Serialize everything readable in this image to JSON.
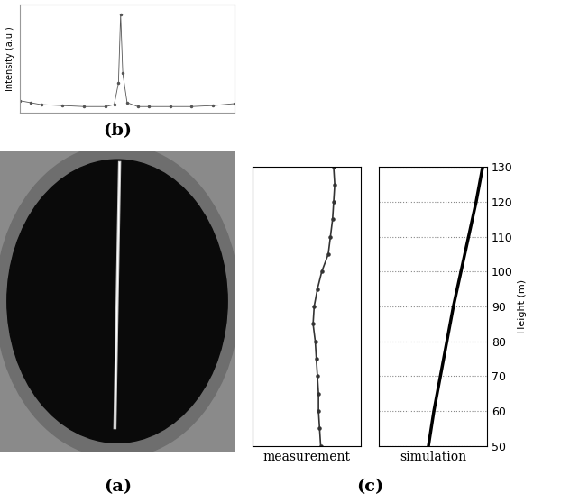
{
  "chart_data": [
    {
      "type": "image",
      "caption": "(a)"
    },
    {
      "type": "line",
      "caption": "(b)",
      "y_label": "Intensity (a.u.)",
      "x": [
        0,
        5,
        10,
        20,
        30,
        40,
        44,
        46,
        47,
        48,
        50,
        55,
        60,
        70,
        80,
        90,
        100
      ],
      "values": [
        12,
        10,
        8,
        7,
        6,
        6,
        8,
        30,
        100,
        40,
        10,
        6,
        6,
        6,
        6,
        7,
        9
      ],
      "xlim": [
        0,
        100
      ],
      "ylim": [
        0,
        110
      ],
      "color": "#555555",
      "marker": "dot",
      "tick_labels": false
    },
    {
      "type": "scatter",
      "caption": "(c)",
      "x_label": "measurement",
      "x": [
        63,
        62,
        61,
        61,
        60,
        59,
        58,
        56,
        57,
        60,
        64,
        70,
        72,
        74,
        75,
        76,
        75
      ],
      "y": [
        50,
        55,
        60,
        65,
        70,
        75,
        80,
        85,
        90,
        95,
        100,
        105,
        110,
        115,
        120,
        125,
        130
      ],
      "xlim": [
        0,
        100
      ],
      "ylim": [
        50,
        130
      ],
      "color": "#333333",
      "marker": "dot",
      "tick_labels": false
    },
    {
      "type": "line",
      "x_label": "simulation",
      "y_label": "Height (m)",
      "x": [
        46,
        51,
        57,
        63,
        69,
        76,
        83,
        90,
        96
      ],
      "y": [
        50,
        60,
        70,
        80,
        90,
        100,
        110,
        120,
        130
      ],
      "xlim": [
        0,
        100
      ],
      "ylim": [
        50,
        130
      ],
      "yticks": [
        50,
        60,
        70,
        80,
        90,
        100,
        110,
        120,
        130
      ],
      "color": "#000000",
      "grid": true,
      "tick_labels": "y"
    }
  ]
}
